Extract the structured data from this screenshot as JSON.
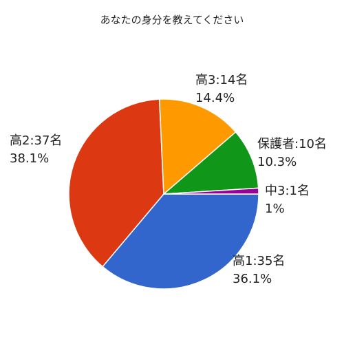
{
  "chart_data": {
    "type": "pie",
    "title": "あなたの身分を教えてください",
    "categories": [
      "高1:35名",
      "高2:37名",
      "高3:14名",
      "保護者:10名",
      "中3:1名"
    ],
    "values": [
      36.1,
      38.1,
      14.4,
      10.3,
      1
    ],
    "value_labels": [
      "36.1%",
      "38.1%",
      "14.4%",
      "10.3%",
      "1%"
    ],
    "colors": [
      "#3366cc",
      "#dc3912",
      "#ff9900",
      "#109618",
      "#990099"
    ]
  }
}
